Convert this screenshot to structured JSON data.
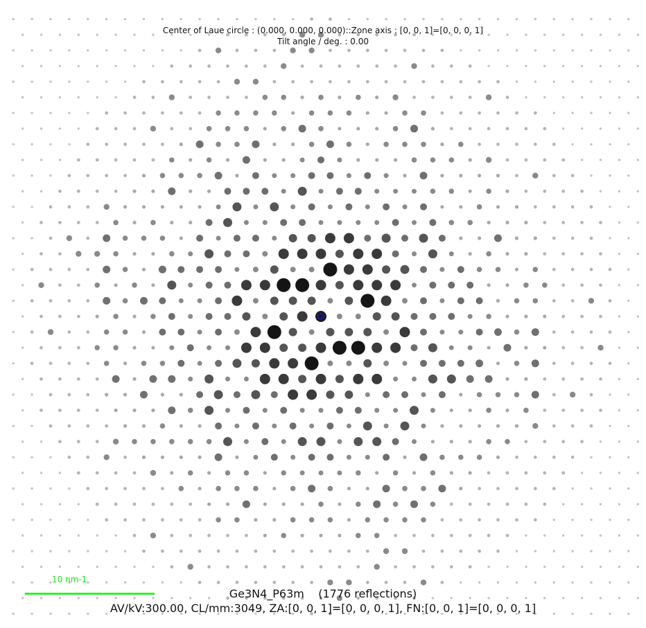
{
  "header": {
    "laue_center": "Center of Laue circle : (0.000, 0.000, 0.000)::Zone axis : [0, 0, 1]=[0, 0, 0, 1]",
    "tilt_angle": "Tilt angle / deg. : 0.00"
  },
  "scale": {
    "label": "10 nm-1",
    "color": "#33ee33"
  },
  "footer": {
    "title": "Ge3N4_P63m    (1776 reflections)",
    "params": "AV/kV:300.00, CL/mm:3049, ZA:[0, 0, 1]=[0, 0, 0, 1], FN:[0, 0, 1]=[0, 0, 0, 1]"
  },
  "pattern": {
    "lattice": "hexagonal",
    "zone_axis": "[0, 0, 1]",
    "reflections_count": 1776,
    "center_marker_color": "#1a1aa0",
    "spot_colors": {
      "strong": "#151515",
      "medium": "#555555",
      "weak": "#8a8a8a",
      "faint": "#c4c4c4"
    }
  }
}
